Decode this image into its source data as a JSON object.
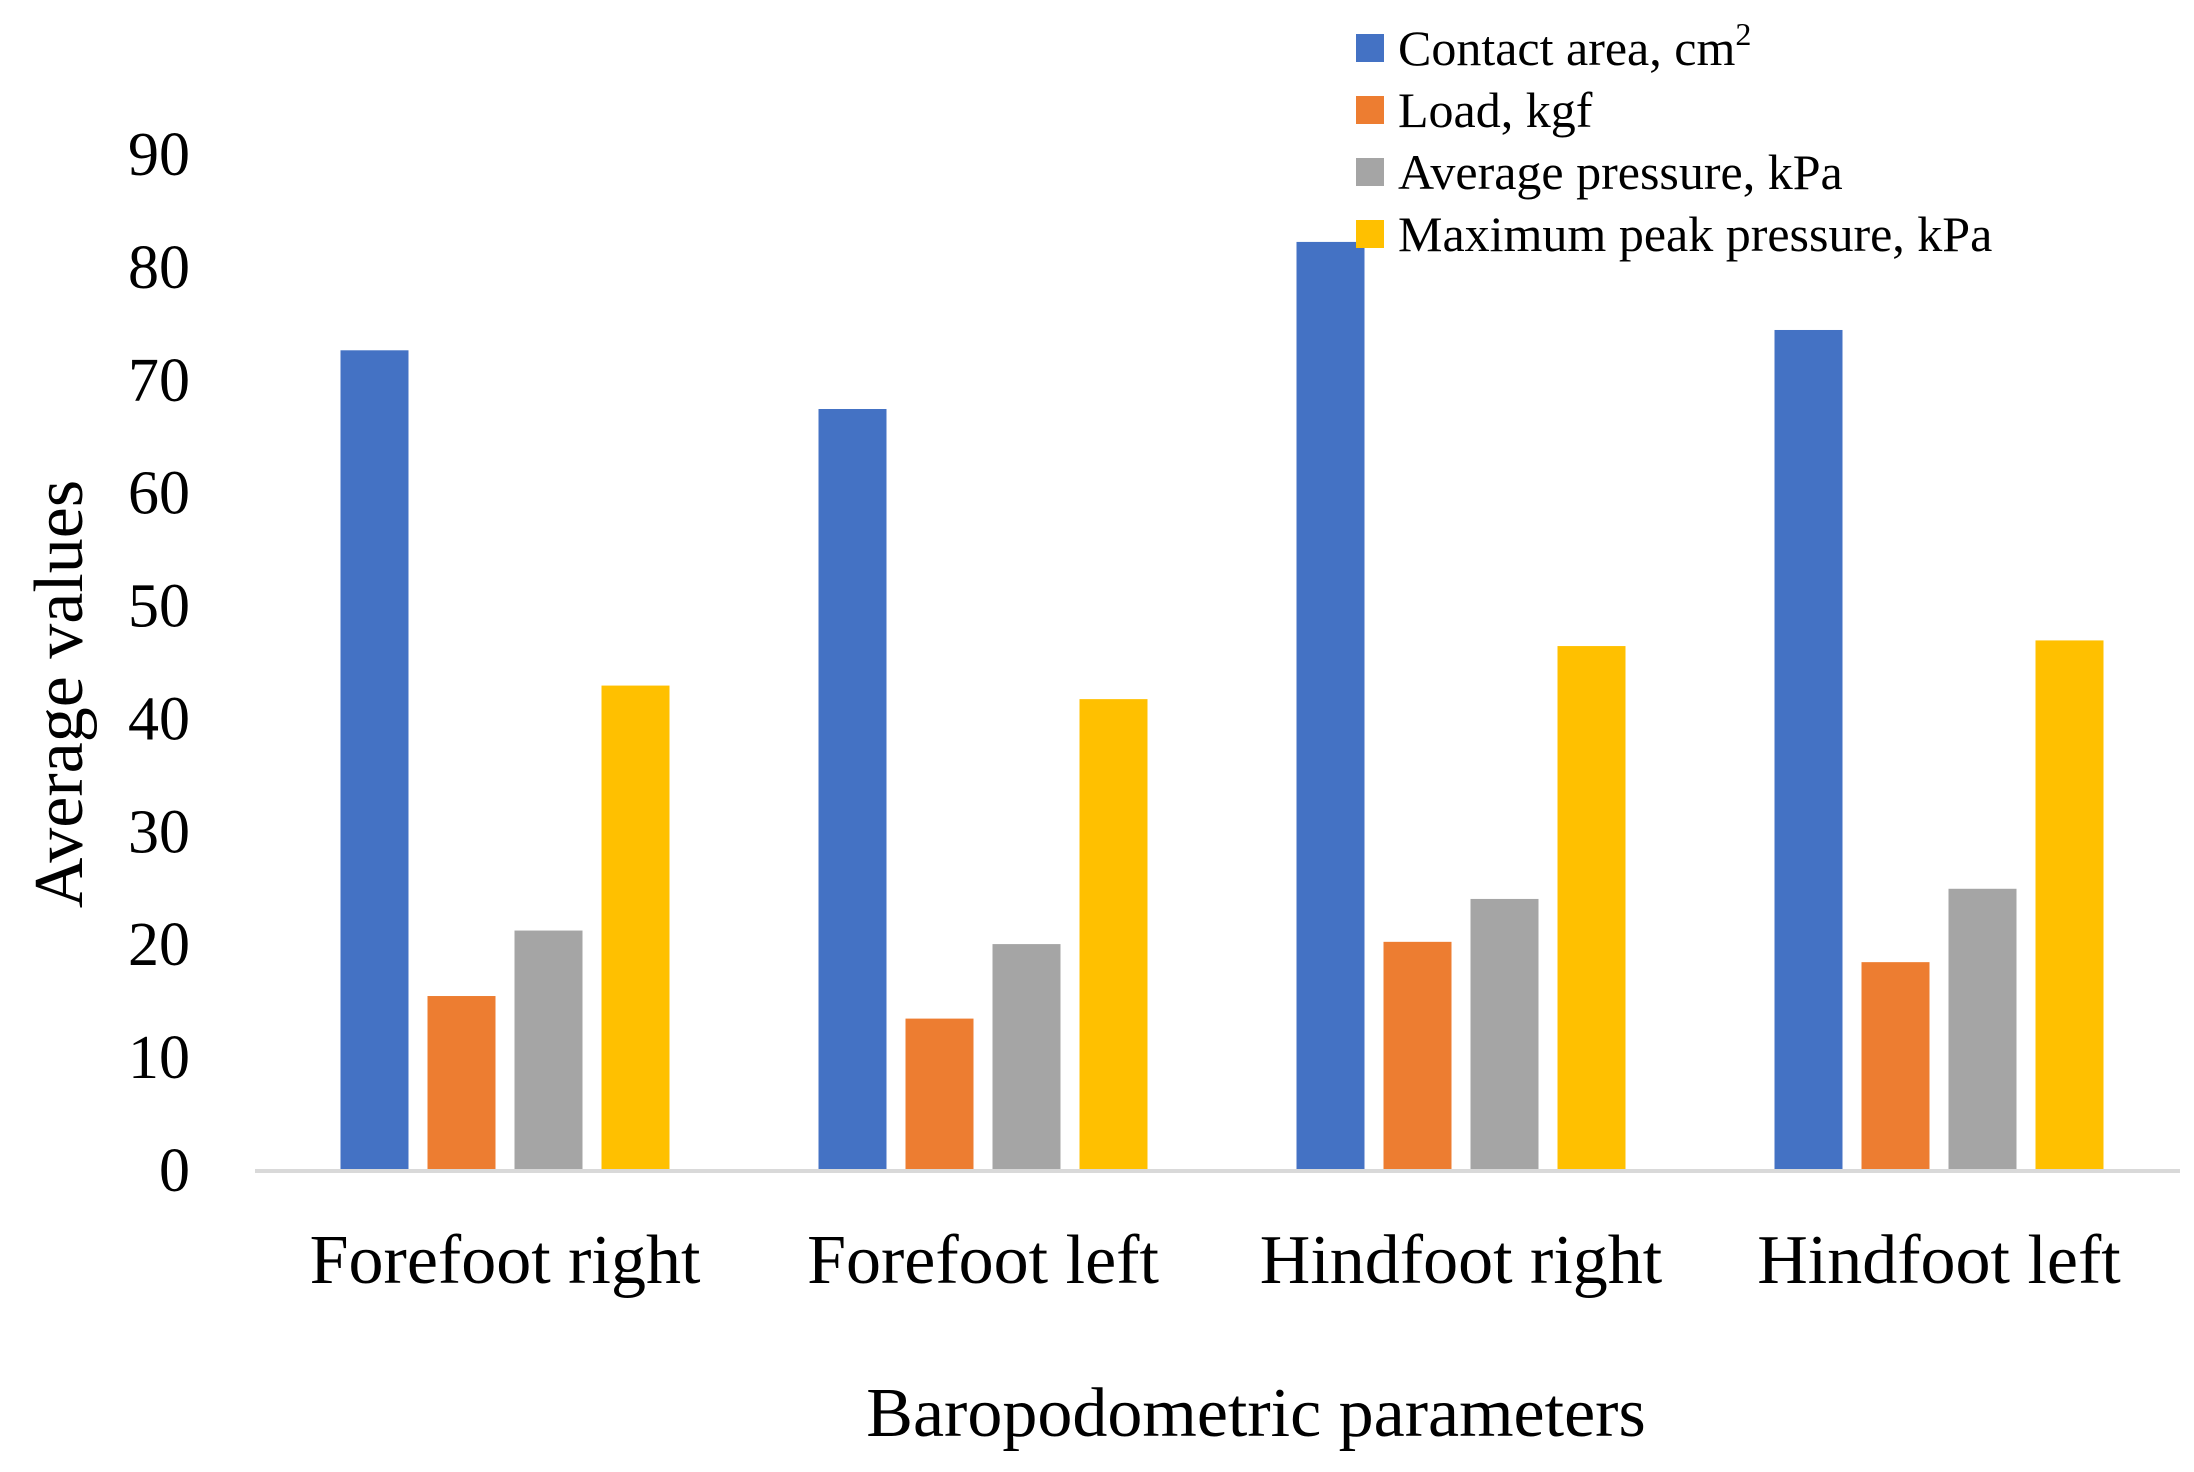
{
  "chart_data": {
    "type": "bar",
    "title": "",
    "xlabel": "Baropodometric parameters",
    "ylabel": "Average values",
    "ylim": [
      0,
      90
    ],
    "ytick_step": 10,
    "yticks": [
      "0",
      "10",
      "20",
      "30",
      "40",
      "50",
      "60",
      "70",
      "80",
      "90"
    ],
    "grid": false,
    "legend_position": "top-right",
    "categories": [
      "Forefoot right",
      "Forefoot left",
      "Hindfoot right",
      "Hindfoot left"
    ],
    "series": [
      {
        "name": "Contact area, cm",
        "superscript": "2",
        "color": "#4472C4",
        "values": [
          72.7,
          67.5,
          82.3,
          74.5
        ]
      },
      {
        "name": "Load, kgf",
        "color": "#ED7D31",
        "values": [
          15.5,
          13.5,
          20.3,
          18.5
        ]
      },
      {
        "name": "Average pressure, kPa",
        "color": "#A5A5A5",
        "values": [
          21.3,
          20.1,
          24.1,
          25.0
        ]
      },
      {
        "name": "Maximum peak pressure, kPa",
        "color": "#FFC000",
        "values": [
          43.0,
          41.8,
          46.5,
          47.0
        ]
      }
    ],
    "axis_color": "#D9D9D9"
  }
}
